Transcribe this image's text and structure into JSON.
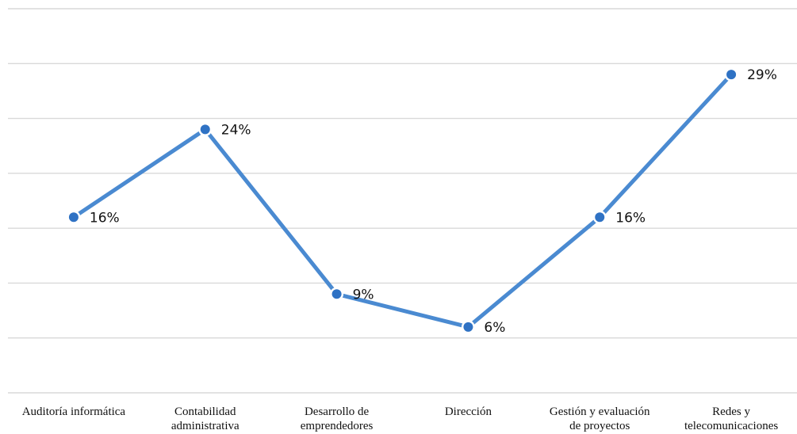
{
  "chart_data": {
    "type": "line",
    "categories": [
      [
        "Auditoría informática"
      ],
      [
        "Contabilidad",
        "administrativa"
      ],
      [
        "Desarrollo de",
        "emprendedores"
      ],
      [
        "Dirección"
      ],
      [
        "Gestión y evaluación",
        "de proyectos"
      ],
      [
        "Redes y",
        "telecomunicaciones"
      ]
    ],
    "series": [
      {
        "values": [
          16,
          24,
          9,
          6,
          16,
          29
        ],
        "labels": [
          "16%",
          "24%",
          "9%",
          "6%",
          "16%",
          "29%"
        ],
        "color": "#4a8ad1",
        "marker_color": "#2f72c4"
      }
    ],
    "ylim": [
      0,
      35
    ],
    "grid": true,
    "legend": "none"
  }
}
